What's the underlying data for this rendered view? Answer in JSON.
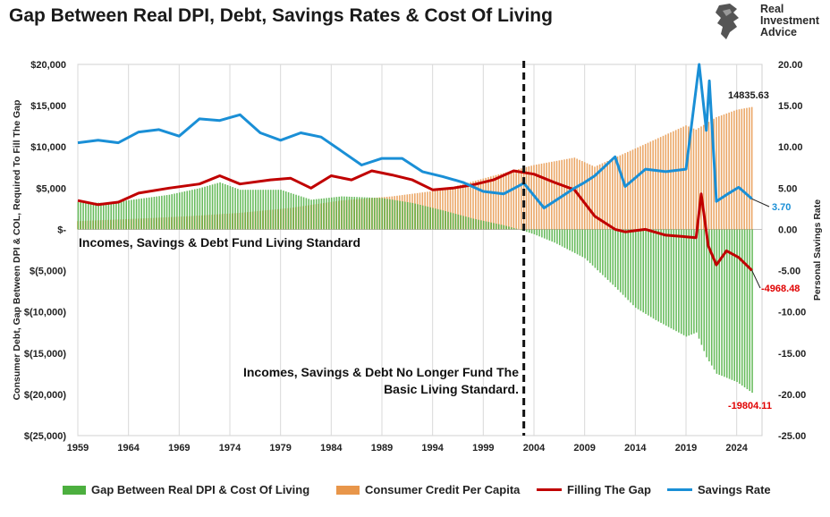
{
  "header": {
    "title": "Gap Between Real DPI, Debt, Savings Rates & Cost Of Living",
    "brand_line1": "Real",
    "brand_line2": "Investment",
    "brand_line3": "Advice"
  },
  "chart_data": {
    "type": "bar",
    "title": "Gap Between Real DPI, Debt, Savings Rates & Cost Of Living",
    "ylabel_left": "Consumer Debt, Gap Between DPI & COL, Required To Fill The Gap",
    "ylabel_right": "Personal Savings Rate",
    "x_tick_labels": [
      "1959",
      "1964",
      "1969",
      "1974",
      "1979",
      "1984",
      "1989",
      "1994",
      "1999",
      "2004",
      "2009",
      "2014",
      "2019",
      "2024"
    ],
    "y_left_tick_labels": [
      "$20,000",
      "$15,000",
      "$10,000",
      "$5,000",
      "$-",
      "$(5,000)",
      "$(10,000)",
      "$(15,000)",
      "$(20,000)",
      "$(25,000)"
    ],
    "y_right_tick_labels": [
      "20.00",
      "15.00",
      "10.00",
      "5.00",
      "0.00",
      "-5.00",
      "-10.00",
      "-15.00",
      "-20.00",
      "-25.00"
    ],
    "ylim_left": [
      -25000,
      20000
    ],
    "ylim_right": [
      -25,
      20
    ],
    "xlim": [
      1959,
      2026.5
    ],
    "grid": "vertical",
    "legend_position": "bottom",
    "series": [
      {
        "name": "Gap Between Real DPI & Cost Of Living",
        "kind": "bar",
        "axis": "left",
        "color": "#4caf3f",
        "points": [
          [
            1959,
            3300
          ],
          [
            1962,
            3200
          ],
          [
            1965,
            3700
          ],
          [
            1968,
            4200
          ],
          [
            1971,
            5000
          ],
          [
            1973,
            5700
          ],
          [
            1975,
            4800
          ],
          [
            1979,
            4800
          ],
          [
            1982,
            3600
          ],
          [
            1985,
            4000
          ],
          [
            1989,
            3800
          ],
          [
            1992,
            3200
          ],
          [
            1995,
            2300
          ],
          [
            1998,
            1300
          ],
          [
            2001,
            500
          ],
          [
            2002.5,
            0
          ],
          [
            2004,
            -600
          ],
          [
            2006,
            -1600
          ],
          [
            2009,
            -3500
          ],
          [
            2012,
            -7000
          ],
          [
            2014,
            -9500
          ],
          [
            2016,
            -11000
          ],
          [
            2019,
            -13000
          ],
          [
            2020,
            -12500
          ],
          [
            2021,
            -15500
          ],
          [
            2022,
            -17500
          ],
          [
            2024,
            -18500
          ],
          [
            2025.5,
            -19804.11
          ]
        ]
      },
      {
        "name": "Consumer Credit Per Capita",
        "kind": "bar",
        "axis": "left",
        "color": "#e8964a",
        "points": [
          [
            1959,
            1000
          ],
          [
            1965,
            1300
          ],
          [
            1970,
            1600
          ],
          [
            1975,
            2000
          ],
          [
            1980,
            2600
          ],
          [
            1985,
            3500
          ],
          [
            1990,
            4000
          ],
          [
            1995,
            4800
          ],
          [
            2000,
            6500
          ],
          [
            2004,
            7800
          ],
          [
            2008,
            8700
          ],
          [
            2010,
            7600
          ],
          [
            2014,
            9800
          ],
          [
            2019,
            12600
          ],
          [
            2020,
            12100
          ],
          [
            2022,
            13600
          ],
          [
            2024,
            14500
          ],
          [
            2025.5,
            14835.63
          ]
        ]
      },
      {
        "name": "Filling The Gap",
        "kind": "line",
        "axis": "right",
        "color": "#c00000",
        "points": [
          [
            1959,
            3.5
          ],
          [
            1961,
            3.0
          ],
          [
            1963,
            3.3
          ],
          [
            1965,
            4.4
          ],
          [
            1968,
            5.0
          ],
          [
            1971,
            5.5
          ],
          [
            1973,
            6.5
          ],
          [
            1975,
            5.5
          ],
          [
            1978,
            6.0
          ],
          [
            1980,
            6.2
          ],
          [
            1982,
            5.0
          ],
          [
            1984,
            6.5
          ],
          [
            1986,
            6.0
          ],
          [
            1988,
            7.1
          ],
          [
            1990,
            6.6
          ],
          [
            1992,
            6.0
          ],
          [
            1994,
            4.8
          ],
          [
            1996,
            5.0
          ],
          [
            1998,
            5.4
          ],
          [
            2000,
            6.0
          ],
          [
            2002,
            7.1
          ],
          [
            2004,
            6.7
          ],
          [
            2006,
            5.7
          ],
          [
            2008,
            4.8
          ],
          [
            2010,
            1.6
          ],
          [
            2012,
            0.0
          ],
          [
            2013,
            -0.3
          ],
          [
            2015,
            0.0
          ],
          [
            2017,
            -0.7
          ],
          [
            2019,
            -0.9
          ],
          [
            2020,
            -1.0
          ],
          [
            2020.5,
            4.3
          ],
          [
            2021.2,
            -2.0
          ],
          [
            2022,
            -4.3
          ],
          [
            2023,
            -2.6
          ],
          [
            2024.2,
            -3.4
          ],
          [
            2025.5,
            -4.97
          ]
        ]
      },
      {
        "name": "Savings Rate",
        "kind": "line",
        "axis": "right",
        "color": "#1a8fd6",
        "points": [
          [
            1959,
            10.5
          ],
          [
            1961,
            10.8
          ],
          [
            1963,
            10.5
          ],
          [
            1965,
            11.8
          ],
          [
            1967,
            12.1
          ],
          [
            1969,
            11.3
          ],
          [
            1971,
            13.4
          ],
          [
            1973,
            13.2
          ],
          [
            1975,
            13.9
          ],
          [
            1977,
            11.7
          ],
          [
            1979,
            10.8
          ],
          [
            1981,
            11.7
          ],
          [
            1983,
            11.2
          ],
          [
            1985,
            9.5
          ],
          [
            1987,
            7.8
          ],
          [
            1989,
            8.6
          ],
          [
            1991,
            8.6
          ],
          [
            1993,
            7.0
          ],
          [
            1995,
            6.4
          ],
          [
            1997,
            5.7
          ],
          [
            1999,
            4.6
          ],
          [
            2001,
            4.3
          ],
          [
            2003,
            5.6
          ],
          [
            2005,
            2.6
          ],
          [
            2006,
            3.4
          ],
          [
            2008,
            5.0
          ],
          [
            2009,
            5.7
          ],
          [
            2010,
            6.5
          ],
          [
            2012,
            8.8
          ],
          [
            2013,
            5.2
          ],
          [
            2015,
            7.3
          ],
          [
            2017,
            7.0
          ],
          [
            2019,
            7.3
          ],
          [
            2020.3,
            20.0
          ],
          [
            2021,
            12.0
          ],
          [
            2021.3,
            18.0
          ],
          [
            2022,
            3.4
          ],
          [
            2023,
            4.2
          ],
          [
            2024.2,
            5.1
          ],
          [
            2025.5,
            3.7
          ]
        ]
      }
    ],
    "annotations": [
      {
        "text": "Incomes, Savings & Debt Fund Living Standard",
        "kind": "label"
      },
      {
        "text": "Incomes, Savings & Debt No Longer Fund The Basic Living Standard.",
        "kind": "label"
      },
      {
        "text": "14835.63",
        "kind": "value",
        "color": "#1a1a1a"
      },
      {
        "text": "3.70",
        "kind": "value",
        "color": "#1a8fd6"
      },
      {
        "text": "-4968.48",
        "kind": "value",
        "color": "#e00000"
      },
      {
        "text": "-19804.11",
        "kind": "value",
        "color": "#e00000"
      }
    ],
    "divider_x": 2003
  }
}
